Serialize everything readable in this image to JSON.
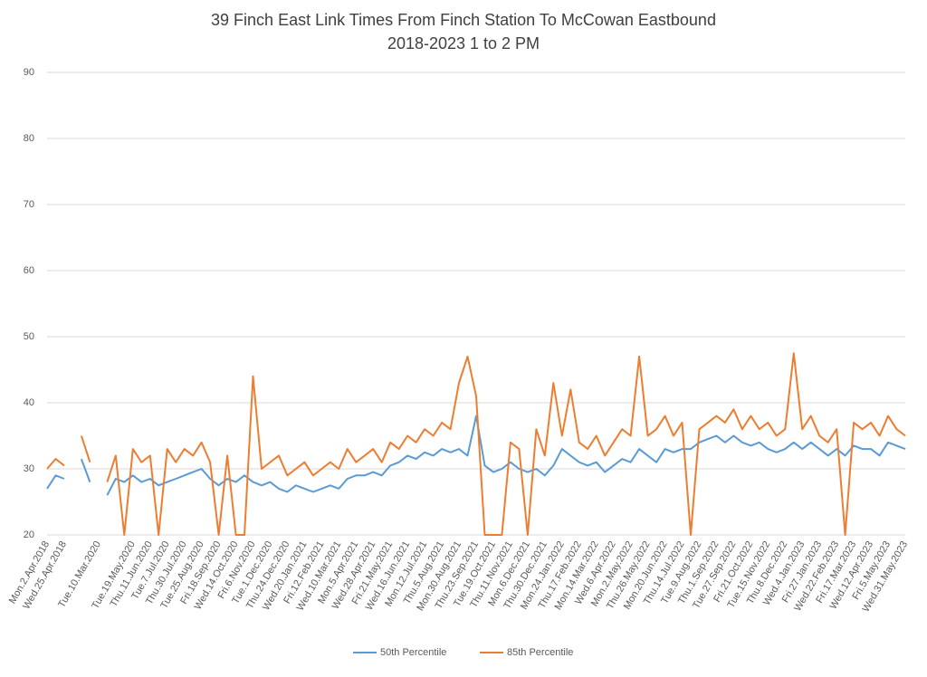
{
  "chart_data": {
    "type": "line",
    "title": "39 Finch East Link Times From Finch Station To McCowan Eastbound",
    "subtitle": "2018-2023 1 to 2 PM",
    "categories": [
      "Mon.2.Apr.2018",
      null,
      "Wed.25.Apr.2018",
      null,
      null,
      null,
      "Tue.10.Mar.2020",
      null,
      null,
      null,
      "Tue.19.May.2020",
      null,
      "Thu.11.Jun.2020",
      null,
      "Tue.7.Jul.2020",
      null,
      "Thu.30.Jul.2020",
      null,
      "Tue.25.Aug.2020",
      null,
      "Fri.18.Sep.2020",
      null,
      "Wed.14.Oct.2020",
      null,
      "Fri.6.Nov.2020",
      null,
      "Tue.1.Dec.2020",
      null,
      "Thu.24.Dec.2020",
      null,
      "Wed.20.Jan.2021",
      null,
      "Fri.12.Feb.2021",
      null,
      "Wed.10.Mar.2021",
      null,
      "Mon.5.Apr.2021",
      null,
      "Wed.28.Apr.2021",
      null,
      "Fri.21.May.2021",
      null,
      "Wed.16.Jun.2021",
      null,
      "Mon.12.Jul.2021",
      null,
      "Thu.5.Aug.2021",
      null,
      "Mon.30.Aug.2021",
      null,
      "Thu.23.Sep.2021",
      null,
      "Tue.19.Oct.2021",
      null,
      "Thu.11.Nov.2021",
      null,
      "Mon.6.Dec.2021",
      null,
      "Thu.30.Dec.2021",
      null,
      "Mon.24.Jan.2022",
      null,
      "Thu.17.Feb.2022",
      null,
      "Mon.14.Mar.2022",
      null,
      "Wed.6.Apr.2022",
      null,
      "Mon.2.May.2022",
      null,
      "Thu.26.May.2022",
      null,
      "Mon.20.Jun.2022",
      null,
      "Thu.14.Jul.2022",
      null,
      "Tue.9.Aug.2022",
      null,
      "Thu.1.Sep.2022",
      null,
      "Tue.27.Sep.2022",
      null,
      "Fri.21.Oct.2022",
      null,
      "Tue.15.Nov.2022",
      null,
      "Thu.8.Dec.2022",
      null,
      "Wed.4.Jan.2023",
      null,
      "Fri.27.Jan.2023",
      null,
      "Wed.22.Feb.2023",
      null,
      "Fri.17.Mar.2023",
      null,
      "Wed.12.Apr.2023",
      null,
      "Fri.5.May.2023",
      null,
      "Wed.31.May.2023"
    ],
    "series": [
      {
        "name": "50th Percentile",
        "color": "#5b9bd5",
        "values": [
          27,
          29,
          28.5,
          null,
          31.5,
          28,
          null,
          26,
          28.5,
          28,
          29,
          28,
          28.5,
          27.5,
          28,
          28.5,
          29,
          29.5,
          30,
          28.5,
          27.5,
          28.5,
          28,
          29,
          28,
          27.5,
          28,
          27,
          26.5,
          27.5,
          27,
          26.5,
          27,
          27.5,
          27,
          28.5,
          29,
          29,
          29.5,
          29,
          30.5,
          31,
          32,
          31.5,
          32.5,
          32,
          33,
          32.5,
          33,
          32,
          38,
          30.5,
          29.5,
          30,
          31,
          30,
          29.5,
          30,
          29,
          30.5,
          33,
          32,
          31,
          30.5,
          31,
          29.5,
          30.5,
          31.5,
          31,
          33,
          32,
          31,
          33,
          32.5,
          33,
          33,
          34,
          34.5,
          35,
          34,
          35,
          34,
          33.5,
          34,
          33,
          32.5,
          33,
          34,
          33,
          34,
          33,
          32,
          33,
          32,
          33.5,
          33,
          33,
          32,
          34,
          33.5,
          33
        ]
      },
      {
        "name": "85th Percentile",
        "color": "#ed7d31",
        "values": [
          30,
          31.5,
          30.5,
          null,
          35,
          31,
          null,
          28,
          32,
          20,
          33,
          31,
          32,
          20,
          33,
          31,
          33,
          32,
          34,
          31,
          20,
          32,
          20,
          20,
          44,
          30,
          31,
          32,
          29,
          30,
          31,
          29,
          30,
          31,
          30,
          33,
          31,
          32,
          33,
          31,
          34,
          33,
          35,
          34,
          36,
          35,
          37,
          36,
          43,
          47,
          41,
          20,
          20,
          20,
          34,
          33,
          20,
          36,
          32,
          43,
          35,
          42,
          34,
          33,
          35,
          32,
          34,
          36,
          35,
          47,
          35,
          36,
          38,
          35,
          37,
          20,
          36,
          37,
          38,
          37,
          39,
          36,
          38,
          36,
          37,
          35,
          36,
          47.5,
          36,
          38,
          35,
          34,
          36,
          20,
          37,
          36,
          37,
          35,
          38,
          36,
          35
        ]
      }
    ],
    "ylim": [
      20,
      90
    ],
    "yticks": [
      20,
      30,
      40,
      50,
      60,
      70,
      80,
      90
    ],
    "grid": true,
    "legend": "bottom"
  }
}
